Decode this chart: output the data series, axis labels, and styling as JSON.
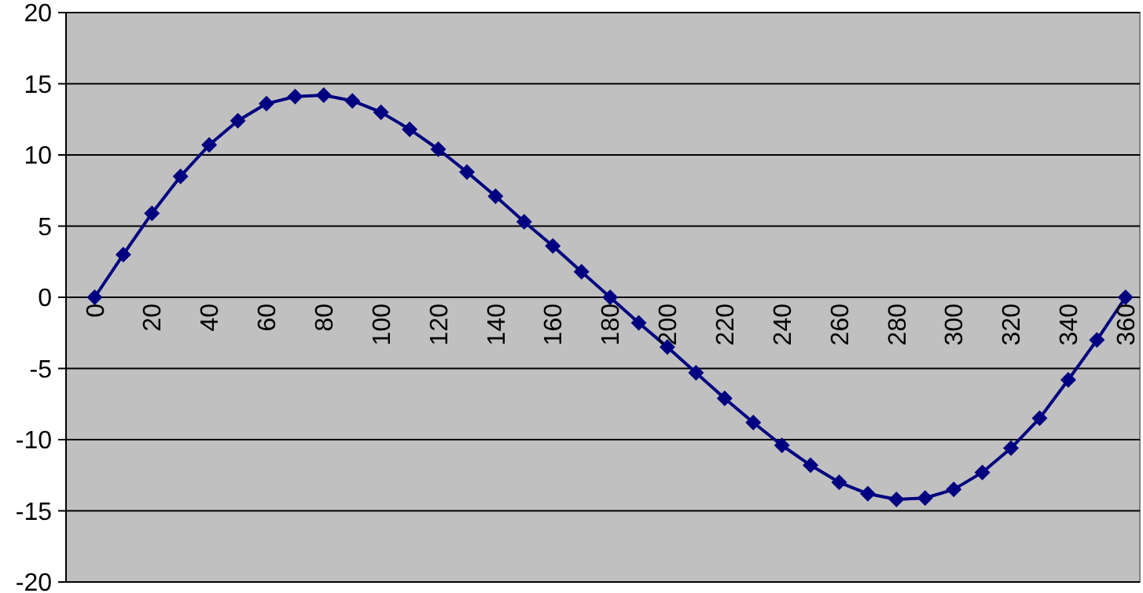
{
  "chart_data": {
    "type": "line",
    "x": [
      0,
      10,
      20,
      30,
      40,
      50,
      60,
      70,
      80,
      90,
      100,
      110,
      120,
      130,
      140,
      150,
      160,
      170,
      180,
      190,
      200,
      210,
      220,
      230,
      240,
      250,
      260,
      270,
      280,
      290,
      300,
      310,
      320,
      330,
      340,
      350,
      360
    ],
    "series": [
      {
        "color": "#000080",
        "values": [
          0,
          3.0,
          5.9,
          8.5,
          10.7,
          12.4,
          13.6,
          14.1,
          14.2,
          13.8,
          13.0,
          11.8,
          10.4,
          8.8,
          7.1,
          5.3,
          3.6,
          1.8,
          0,
          -1.8,
          -3.5,
          -5.3,
          -7.1,
          -8.8,
          -10.4,
          -11.8,
          -13.0,
          -13.8,
          -14.2,
          -14.1,
          -13.5,
          -12.3,
          -10.6,
          -8.5,
          -5.8,
          -3.0,
          0
        ]
      }
    ],
    "xlim": [
      -10,
      365
    ],
    "xticks": [
      0,
      20,
      40,
      60,
      80,
      100,
      120,
      140,
      160,
      180,
      200,
      220,
      240,
      260,
      280,
      300,
      320,
      340,
      360
    ],
    "ylim": [
      -20,
      20
    ],
    "yticks": [
      -20,
      -15,
      -10,
      -5,
      0,
      5,
      10,
      15,
      20
    ],
    "grid": "y",
    "marker": "diamond",
    "line_style": "solid"
  }
}
